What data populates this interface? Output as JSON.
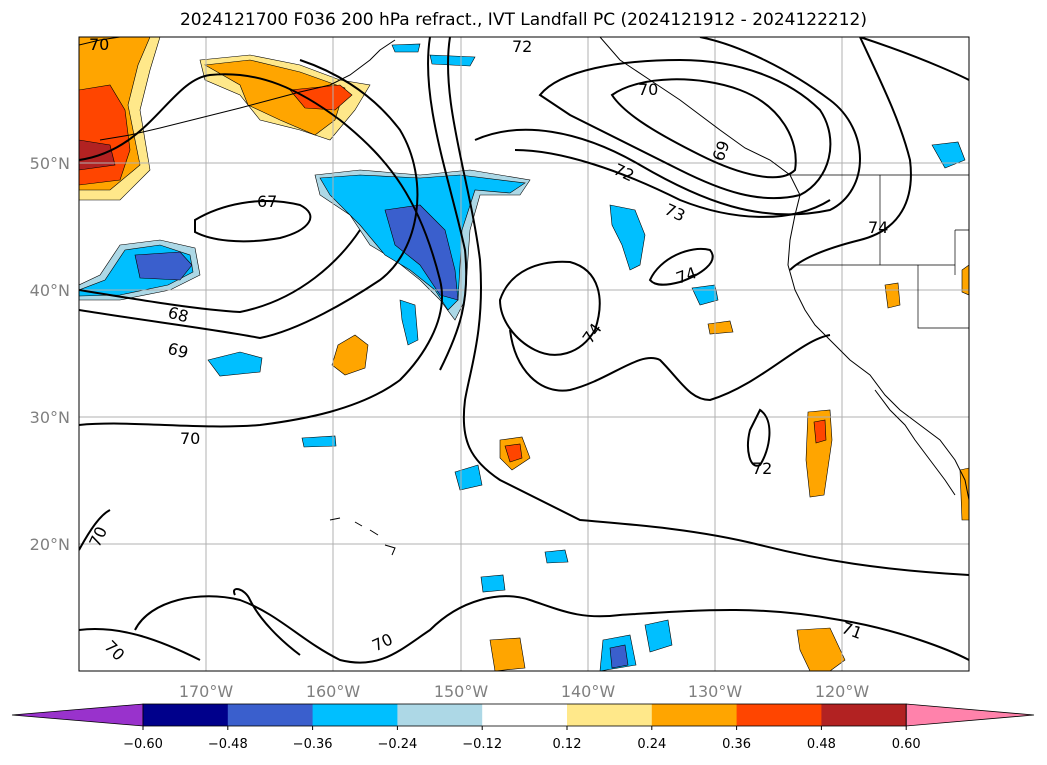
{
  "title": "2024121700 F036 200 hPa refract., IVT Landfall PC (2024121912 - 2024122212)",
  "lon_labels": [
    "170°W",
    "160°W",
    "150°W",
    "140°W",
    "130°W",
    "120°W"
  ],
  "lat_labels": [
    "50°N",
    "40°N",
    "30°N",
    "20°N"
  ],
  "colorbar": {
    "ticks": [
      "−0.60",
      "−0.48",
      "−0.36",
      "−0.24",
      "−0.12",
      "0.12",
      "0.24",
      "0.36",
      "0.48",
      "0.60"
    ],
    "colors": {
      "under": "#9932cc",
      "bins": [
        "#9932cc",
        "#00008b",
        "#3a5fcd",
        "#00bfff",
        "#add8e6",
        "#ffffff",
        "#ffe88a",
        "#ffa500",
        "#ff4500",
        "#b22222",
        "#ff82ab"
      ],
      "over": "#ff82ab"
    }
  },
  "contour_labels": [
    "70",
    "72",
    "70",
    "69",
    "72",
    "73",
    "74",
    "74",
    "74",
    "67",
    "68",
    "69",
    "70",
    "72",
    "70",
    "70",
    "70",
    "71"
  ],
  "map": {
    "projection": "equirectangular",
    "lon_range": [
      -180,
      -110
    ],
    "lat_range": [
      10,
      60
    ],
    "gridlines": true,
    "coastlines": true,
    "state_borders": true
  }
}
